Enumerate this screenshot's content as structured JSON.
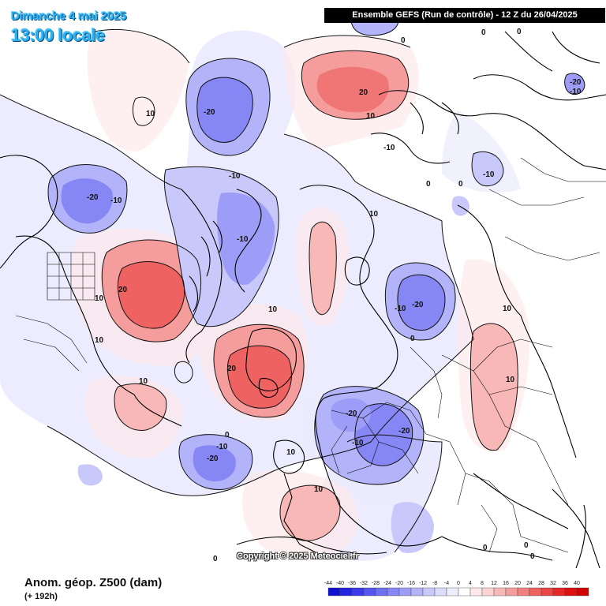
{
  "header": {
    "date_label": "Dimanche 4 mai 2025",
    "time_label": "13:00 locale",
    "run_info": "Ensemble GEFS  (Run de contrôle)  -  12 Z du 26/04/2025"
  },
  "footer": {
    "variable_label": "Anom. géop. Z500 (dam)",
    "lead_time": "(+ 192h)",
    "copyright": "Copyright © 2025 Meteociel.fr"
  },
  "legend": {
    "values": [
      "-44",
      "-40",
      "-36",
      "-32",
      "-28",
      "-24",
      "-20",
      "-16",
      "-12",
      "-8",
      "-4",
      "0",
      "4",
      "8",
      "12",
      "16",
      "20",
      "24",
      "28",
      "32",
      "36",
      "40"
    ],
    "colors": [
      "#1010d0",
      "#2323e0",
      "#3a3aea",
      "#5555f0",
      "#6f6ff3",
      "#8686f5",
      "#9d9df7",
      "#b3b3fa",
      "#c8c8fb",
      "#dcdcfd",
      "#ededfe",
      "#ffffff",
      "#fde9e9",
      "#fbd3d3",
      "#f8b8b8",
      "#f59c9c",
      "#f28080",
      "#ee6262",
      "#ea4444",
      "#e42727",
      "#dd1010",
      "#d00000"
    ]
  },
  "contour_labels": [
    "-20",
    "-20",
    "-10",
    "-10",
    "-10",
    "-20",
    "-10",
    "-10",
    "-10",
    "-20",
    "-10",
    "-10",
    "-20",
    "-20",
    "-10",
    "-20",
    "10",
    "20",
    "10",
    "10",
    "10",
    "10",
    "20",
    "10",
    "10",
    "10",
    "20",
    "10",
    "10",
    "10",
    "0",
    "0",
    "0",
    "0",
    "0",
    "0",
    "0",
    "0",
    "0",
    "0",
    "0"
  ],
  "colors": {
    "negative": "#6a6af2",
    "positive": "#ef5d5d",
    "header_bg": "#000000",
    "title": "#2bb0f0"
  }
}
